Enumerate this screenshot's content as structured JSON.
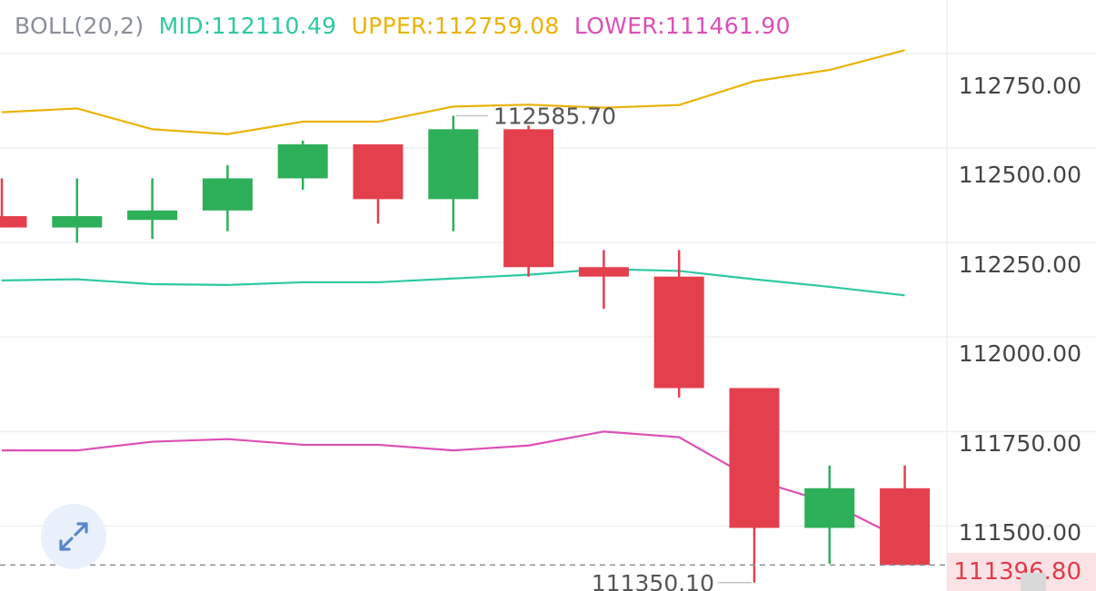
{
  "indicator": {
    "name": "BOLL(20,2)",
    "mid_label": "MID:112110.49",
    "upper_label": "UPPER:112759.08",
    "lower_label": "LOWER:111461.90"
  },
  "colors": {
    "up": "#2eaf5a",
    "down": "#e33f4d",
    "mid": "#2ec9a1",
    "upper": "#eab308",
    "lower": "#dc4fb5",
    "grid": "#eef0f3",
    "neutral": "#8a8f98"
  },
  "price_axis": {
    "ticks": [
      "112750.00",
      "112500.00",
      "112250.00",
      "112000.00",
      "111750.00",
      "111500.00"
    ],
    "current_price": "111396.80"
  },
  "annotations": {
    "high_label": "112585.70",
    "low_label": "111350.10"
  },
  "chart_data": {
    "type": "candlestick",
    "y_range": [
      111328,
      112892
    ],
    "candles": [
      {
        "open": 112320,
        "close": 112290,
        "high": 112420,
        "low": 112290
      },
      {
        "open": 112290,
        "close": 112320,
        "high": 112420,
        "low": 112250
      },
      {
        "open": 112310,
        "close": 112335,
        "high": 112420,
        "low": 112260
      },
      {
        "open": 112335,
        "close": 112420,
        "high": 112455,
        "low": 112280
      },
      {
        "open": 112420,
        "close": 112510,
        "high": 112520,
        "low": 112390
      },
      {
        "open": 112510,
        "close": 112365,
        "high": 112510,
        "low": 112300
      },
      {
        "open": 112365,
        "close": 112550,
        "high": 112585.7,
        "low": 112280
      },
      {
        "open": 112550,
        "close": 112185,
        "high": 112560,
        "low": 112160
      },
      {
        "open": 112185,
        "close": 112160,
        "high": 112230,
        "low": 112075
      },
      {
        "open": 112160,
        "close": 111865,
        "high": 112230,
        "low": 111840
      },
      {
        "open": 111865,
        "close": 111495,
        "high": 111865,
        "low": 111350.1
      },
      {
        "open": 111495,
        "close": 111600,
        "high": 111660,
        "low": 111400
      },
      {
        "open": 111600,
        "close": 111396.8,
        "high": 111660,
        "low": 111396.8
      }
    ],
    "upper_band": [
      112595,
      112605,
      112550,
      112537,
      112570,
      112570,
      112610,
      112615,
      112607,
      112614,
      112677,
      112707,
      112759.08
    ],
    "mid_band": [
      112150,
      112153,
      112140,
      112138,
      112145,
      112145,
      112155,
      112165,
      112180,
      112175,
      112153,
      112133,
      112110.49
    ],
    "lower_band": [
      111700,
      111700,
      111723,
      111730,
      111715,
      111715,
      111700,
      111713,
      111750,
      111735,
      111622,
      111562,
      111461.9
    ]
  }
}
